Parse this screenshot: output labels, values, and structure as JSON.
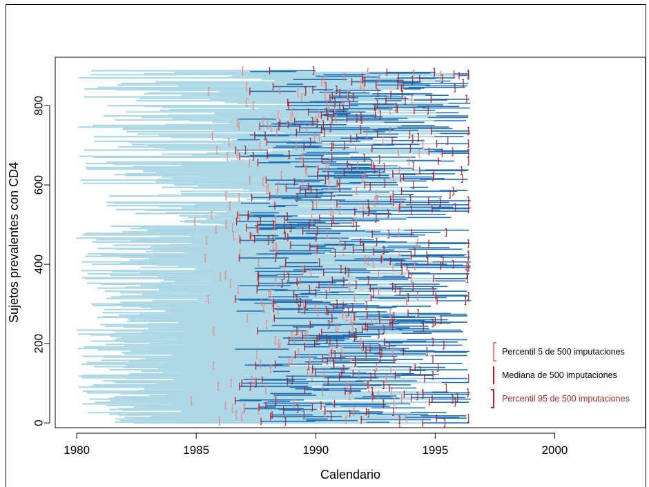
{
  "chart_data": {
    "type": "line",
    "title": "",
    "xlabel": "Calendario",
    "ylabel": "Sujetos prevalentes con CD4",
    "xlim": [
      1979.1,
      2003.8
    ],
    "ylim": [
      -12,
      922
    ],
    "x_ticks": [
      1980,
      1985,
      1990,
      1995,
      2000
    ],
    "y_ticks": [
      0,
      200,
      400,
      600,
      800
    ],
    "x_tick_labels": [
      "1980",
      "1985",
      "1990",
      "1995",
      "2000"
    ],
    "y_tick_labels": [
      "0",
      "200",
      "400",
      "600",
      "800"
    ],
    "grid": false,
    "legend_position": "bottom-right",
    "n_subjects": 890,
    "series": [
      {
        "name": "Percentil 5 de 500 imputaciones",
        "color": "#f08080",
        "marker": "["
      },
      {
        "name": "Mediana de 500  imputaciones",
        "color": "#d01020",
        "marker": "|"
      },
      {
        "name": "Percentil 95 de 500 imputaciones",
        "color": "#a52a2a",
        "marker": "]"
      }
    ],
    "colors": {
      "pre_segment": "#add8e6",
      "post_segment": "#1f6fb4",
      "p5": "#f08080",
      "median": "#d01020",
      "p95": "#a52a2a"
    }
  },
  "legend": {
    "items": [
      {
        "label": "Percentil 5 de 500 imputaciones",
        "color": "#000000",
        "marker_color": "#f08080"
      },
      {
        "label": "Mediana de 500  imputaciones",
        "color": "#000000",
        "marker_color": "#d01020"
      },
      {
        "label": "Percentil 95 de 500 imputaciones",
        "color": "#a52a2a",
        "marker_color": "#a52a2a"
      }
    ]
  }
}
